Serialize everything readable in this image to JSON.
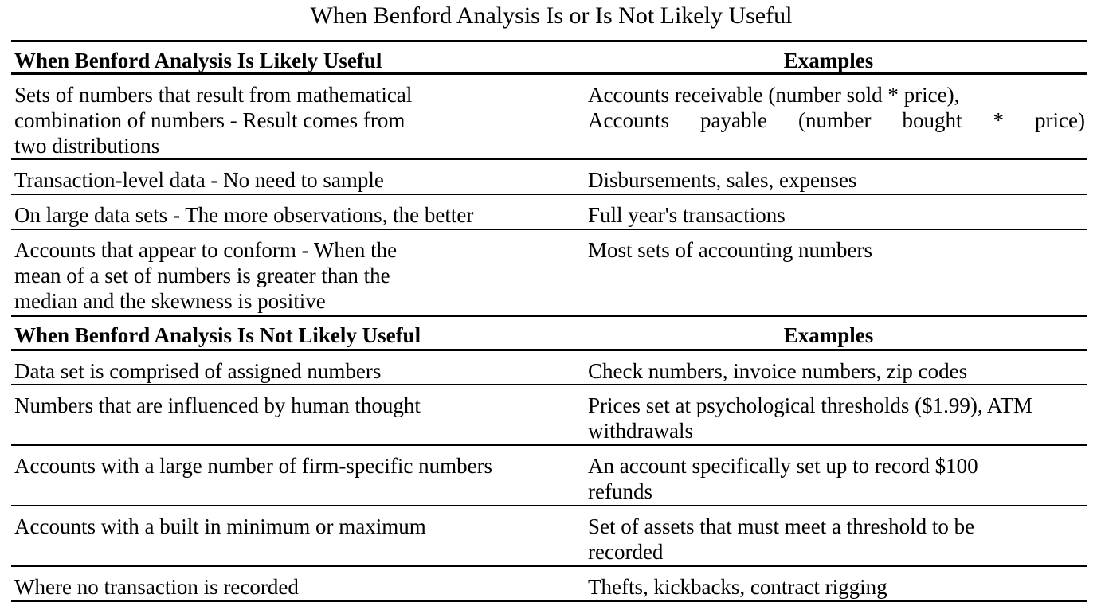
{
  "title": "When Benford Analysis Is or Is Not Likely Useful",
  "section_likely": {
    "header_left": "When Benford Analysis Is Likely Useful",
    "header_right": "Examples",
    "rows": [
      {
        "condition": "Sets of numbers that result from mathematical\ncombination of numbers - Result comes from\ntwo distributions",
        "example_line1": "Accounts receivable (number sold * price),",
        "example_line2": "Accounts payable (number bought * price)"
      },
      {
        "condition": "Transaction-level data - No need to sample",
        "example": "Disbursements, sales, expenses"
      },
      {
        "condition": "On large data sets - The more observations, the better",
        "example": "Full year's transactions"
      },
      {
        "condition": "Accounts that appear to conform - When the\nmean of a set of numbers is greater than the\nmedian and the skewness is positive",
        "example": "Most sets of accounting numbers"
      }
    ]
  },
  "section_not_likely": {
    "header_left": "When Benford Analysis Is Not Likely Useful",
    "header_right": "Examples",
    "rows": [
      {
        "condition": "Data set is comprised of assigned numbers",
        "example": "Check numbers, invoice numbers, zip codes"
      },
      {
        "condition": "Numbers that are influenced by human thought",
        "example": "Prices set at psychological thresholds ($1.99), ATM\nwithdrawals"
      },
      {
        "condition": "Accounts with a large number of firm-specific numbers",
        "example": "An account specifically set up to record $100\nrefunds"
      },
      {
        "condition": "Accounts with a built in minimum or maximum",
        "example": "Set of assets that must meet a threshold to be\nrecorded"
      },
      {
        "condition": "Where no transaction is recorded",
        "example": "Thefts, kickbacks, contract rigging"
      }
    ]
  }
}
